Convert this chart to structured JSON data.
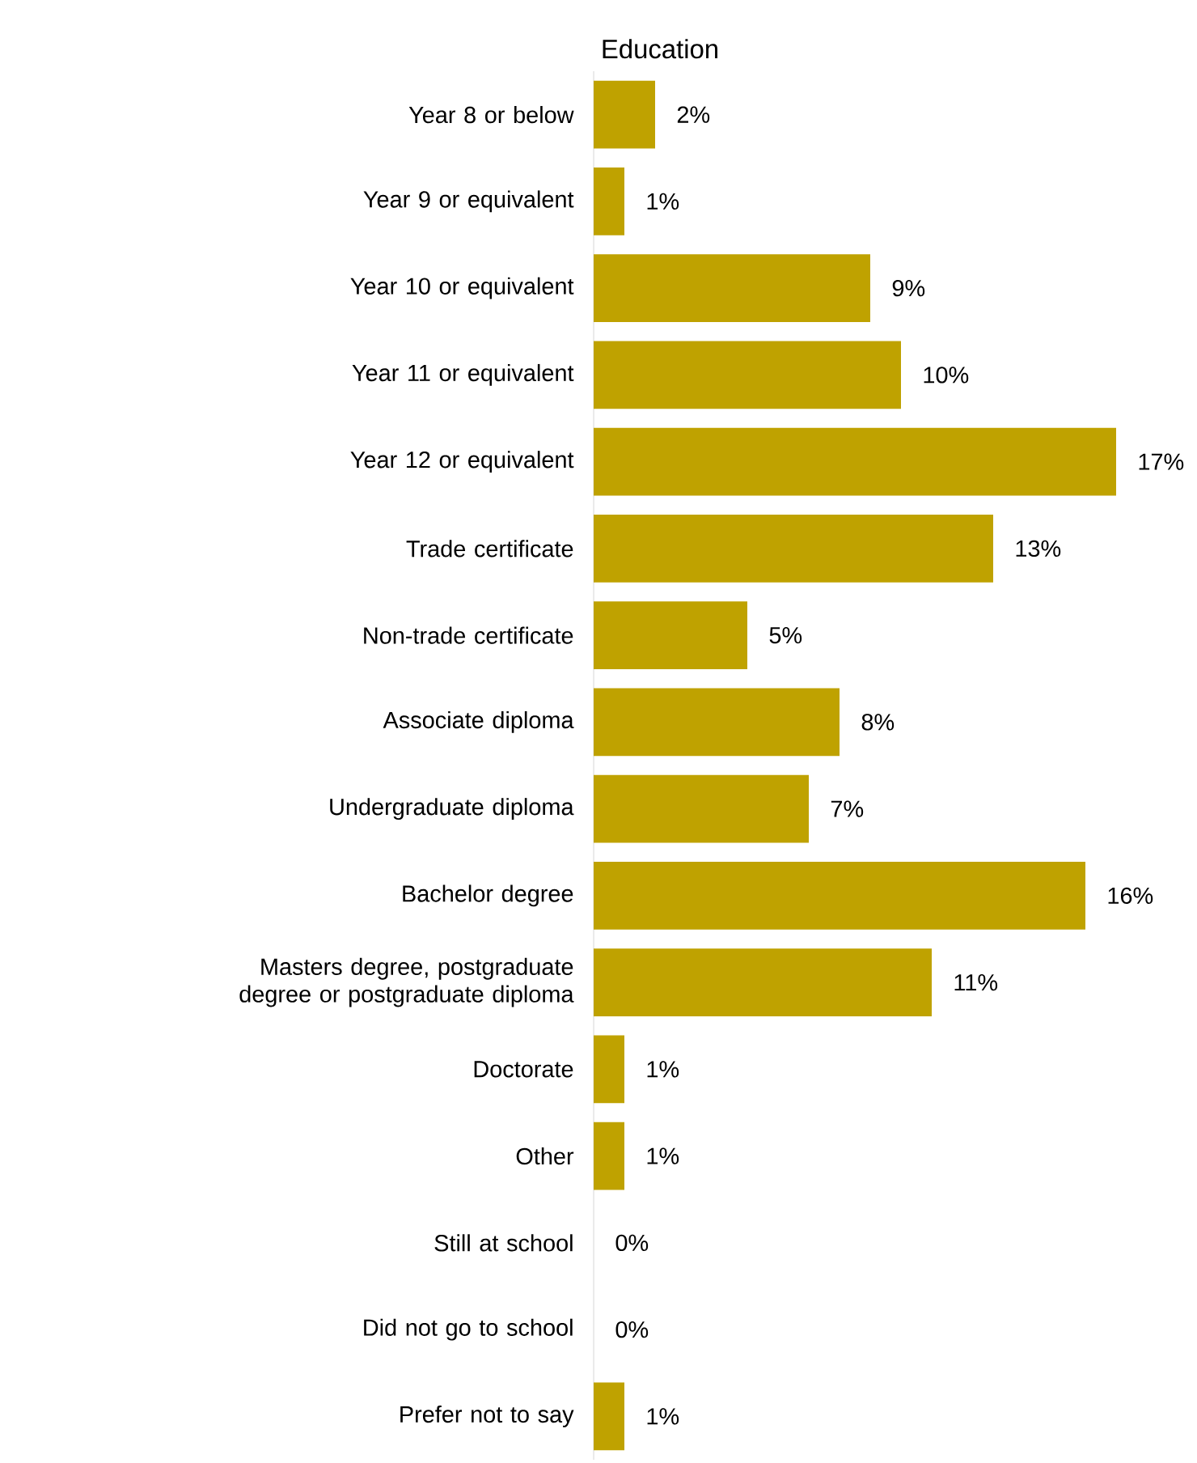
{
  "chart_data": {
    "type": "bar",
    "orientation": "horizontal",
    "title": "Education",
    "categories": [
      "Year 8 or below",
      "Year 9 or equivalent",
      "Year 10 or equivalent",
      "Year 11 or equivalent",
      "Year 12 or equivalent",
      "Trade certificate",
      "Non-trade certificate",
      "Associate diploma",
      "Undergraduate diploma",
      "Bachelor degree",
      "Masters degree, postgraduate degree or postgraduate diploma",
      "Doctorate",
      "Other",
      "Still at school",
      "Did not go to school",
      "Prefer not to say"
    ],
    "values": [
      2,
      1,
      9,
      10,
      17,
      13,
      5,
      8,
      7,
      16,
      11,
      1,
      1,
      0,
      0,
      1
    ],
    "value_labels": [
      "2%",
      "1%",
      "9%",
      "10%",
      "17%",
      "13%",
      "5%",
      "8%",
      "7%",
      "16%",
      "11%",
      "1%",
      "1%",
      "0%",
      "0%",
      "1%"
    ],
    "color": "#bfa200"
  }
}
